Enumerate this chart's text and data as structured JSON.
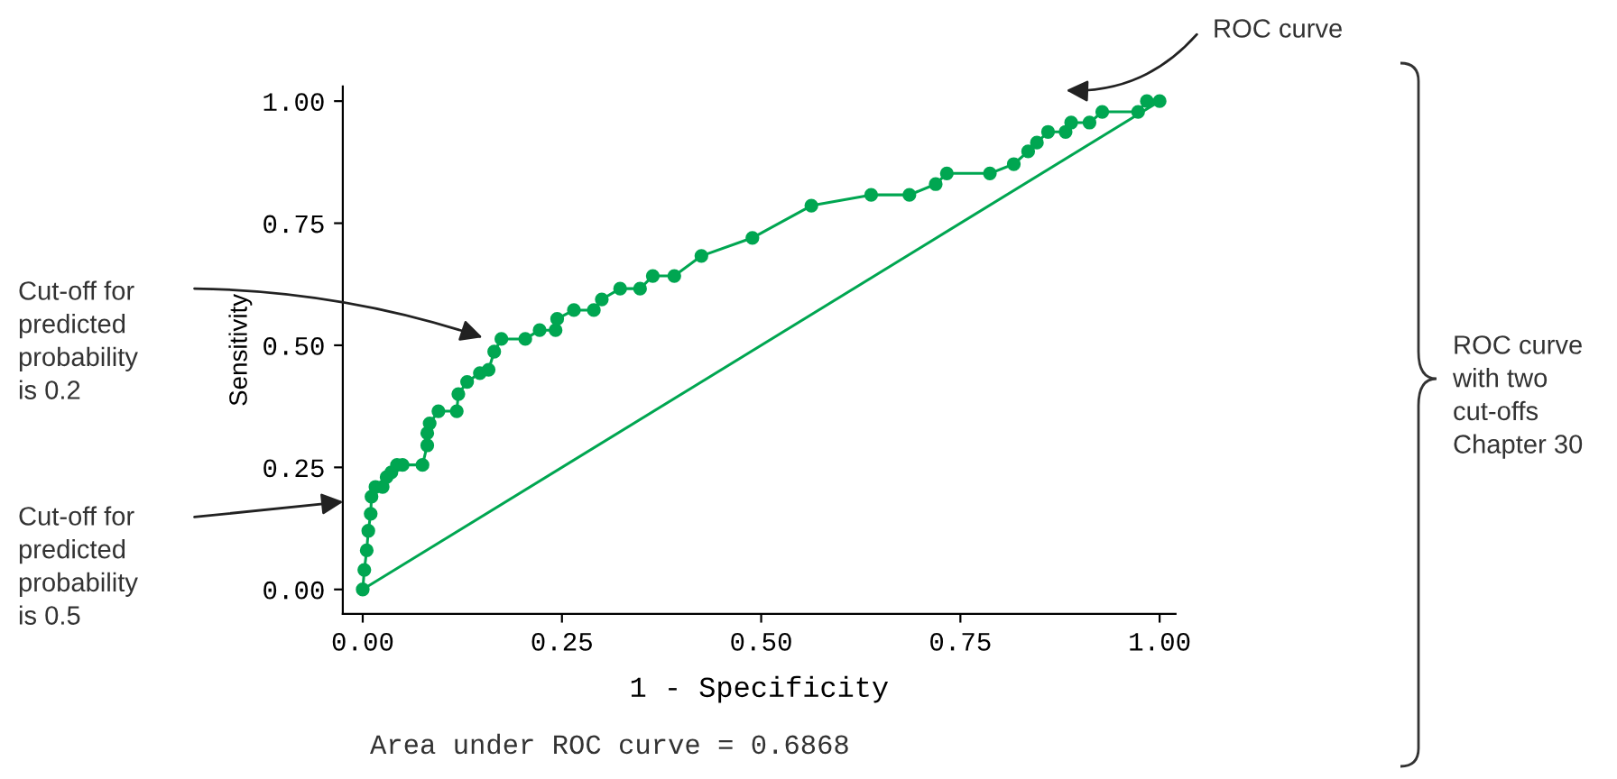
{
  "chart_data": {
    "type": "line",
    "xlabel": "1 - Specificity",
    "ylabel": "Sensitivity",
    "xlim": [
      -0.025,
      1.02
    ],
    "ylim": [
      -0.05,
      1.03
    ],
    "xticks": [
      {
        "value": 0,
        "label": "0.00"
      },
      {
        "value": 0.25,
        "label": "0.25"
      },
      {
        "value": 0.5,
        "label": "0.50"
      },
      {
        "value": 0.75,
        "label": "0.75"
      },
      {
        "value": 1,
        "label": "1.00"
      }
    ],
    "yticks": [
      {
        "value": 0,
        "label": "0.00"
      },
      {
        "value": 0.25,
        "label": "0.25"
      },
      {
        "value": 0.5,
        "label": "0.50"
      },
      {
        "value": 0.75,
        "label": "0.75"
      },
      {
        "value": 1,
        "label": "1.00"
      }
    ],
    "grid": false,
    "series": [
      {
        "color": "#00a651",
        "marker": "circle",
        "x": [
          0,
          0.002,
          0.005,
          0.007,
          0.01,
          0.011,
          0.016,
          0.025,
          0.03,
          0.036,
          0.043,
          0.05,
          0.075,
          0.081,
          0.081,
          0.084,
          0.095,
          0.118,
          0.12,
          0.131,
          0.147,
          0.158,
          0.165,
          0.174,
          0.204,
          0.222,
          0.242,
          0.244,
          0.265,
          0.29,
          0.3,
          0.323,
          0.348,
          0.364,
          0.391,
          0.425,
          0.489,
          0.563,
          0.638,
          0.686,
          0.719,
          0.733,
          0.787,
          0.817,
          0.835,
          0.846,
          0.86,
          0.882,
          0.889,
          0.912,
          0.928,
          0.973,
          0.984,
          1.0
        ],
        "values": [
          0,
          0.04,
          0.08,
          0.12,
          0.155,
          0.19,
          0.21,
          0.21,
          0.23,
          0.24,
          0.255,
          0.255,
          0.255,
          0.295,
          0.32,
          0.34,
          0.365,
          0.365,
          0.4,
          0.425,
          0.443,
          0.45,
          0.487,
          0.513,
          0.513,
          0.531,
          0.531,
          0.554,
          0.572,
          0.572,
          0.594,
          0.616,
          0.616,
          0.642,
          0.642,
          0.683,
          0.72,
          0.786,
          0.808,
          0.808,
          0.83,
          0.852,
          0.852,
          0.871,
          0.897,
          0.915,
          0.937,
          0.937,
          0.956,
          0.956,
          0.978,
          0.978,
          1.0,
          1.0
        ]
      },
      {
        "color": "#00a651",
        "marker": "none",
        "x": [
          0,
          1
        ],
        "values": [
          0,
          1
        ]
      }
    ],
    "annotations": [
      "ROC curve",
      "Cut-off for\npredicted\nprobability\nis 0.2",
      "Cut-off for\npredicted\nprobability\nis 0.5",
      "Area under ROC curve = 0.6868",
      "ROC curve\nwith two\ncut-offs\nChapter 30"
    ]
  }
}
